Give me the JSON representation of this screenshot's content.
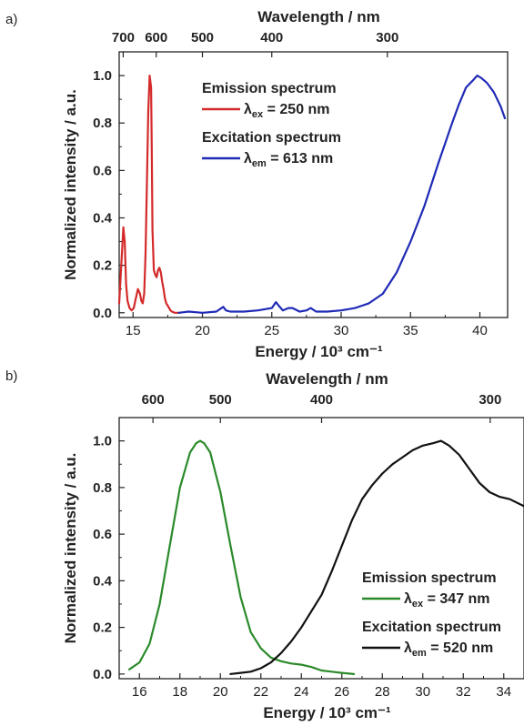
{
  "chart_data": [
    {
      "type": "line",
      "panel_label": "a)",
      "xlabel": "Energy / 10³ cm⁻¹",
      "ylabel": "Normalized intensity / a.u.",
      "x2label": "Wavelength / nm",
      "xlim": [
        14,
        42
      ],
      "ylim": [
        -0.02,
        1.1
      ],
      "xticks": [
        15,
        20,
        25,
        30,
        35,
        40
      ],
      "yticks": [
        0.0,
        0.2,
        0.4,
        0.6,
        0.8,
        1.0
      ],
      "ytick_labels": [
        "0.0",
        "0.2",
        "0.4",
        "0.6",
        "0.8",
        "1.0"
      ],
      "top_ticks": [
        {
          "label": "700",
          "energy": 14.29
        },
        {
          "label": "600",
          "energy": 16.67
        },
        {
          "label": "500",
          "energy": 20.0
        },
        {
          "label": "400",
          "energy": 25.0
        },
        {
          "label": "300",
          "energy": 33.33
        }
      ],
      "legend": [
        {
          "heading": "Emission spectrum",
          "label": "λex = 250 nm",
          "sub": "ex",
          "value": " = 250 nm",
          "color": "#d42a2a"
        },
        {
          "heading": "Excitation spectrum",
          "label": "λem = 613 nm",
          "sub": "em",
          "value": " = 613 nm",
          "color": "#1f2ab5"
        }
      ],
      "series": [
        {
          "color": "#d42a2a",
          "x": [
            14.0,
            14.15,
            14.3,
            14.4,
            14.5,
            14.6,
            14.75,
            14.9,
            15.05,
            15.2,
            15.35,
            15.5,
            15.6,
            15.7,
            15.8,
            15.9,
            16.0,
            16.1,
            16.2,
            16.3,
            16.35,
            16.4,
            16.5,
            16.6,
            16.7,
            16.8,
            16.9,
            17.0,
            17.1,
            17.2,
            17.3,
            17.4,
            17.5,
            17.6,
            17.7,
            17.8,
            18.0,
            18.3
          ],
          "y": [
            0.04,
            0.2,
            0.36,
            0.3,
            0.12,
            0.05,
            0.02,
            0.01,
            0.02,
            0.06,
            0.1,
            0.08,
            0.05,
            0.04,
            0.08,
            0.25,
            0.55,
            0.85,
            1.0,
            0.95,
            0.7,
            0.35,
            0.18,
            0.16,
            0.15,
            0.18,
            0.19,
            0.17,
            0.13,
            0.1,
            0.06,
            0.04,
            0.03,
            0.02,
            0.01,
            0.005,
            0.0,
            0.0
          ]
        },
        {
          "color": "#1f2ab5",
          "x": [
            18.3,
            19.0,
            20.0,
            21.0,
            21.5,
            21.7,
            22.0,
            23.0,
            24.0,
            25.0,
            25.3,
            25.5,
            25.8,
            26.2,
            26.5,
            27.0,
            27.5,
            27.8,
            28.2,
            29.0,
            30.0,
            31.0,
            31.5,
            32.0,
            33.0,
            34.0,
            35.0,
            36.0,
            37.0,
            38.0,
            38.5,
            39.0,
            39.5,
            39.8,
            40.1,
            40.5,
            41.0,
            41.5,
            41.8
          ],
          "y": [
            0.0,
            0.005,
            0.0,
            0.005,
            0.025,
            0.01,
            0.005,
            0.005,
            0.01,
            0.02,
            0.045,
            0.03,
            0.01,
            0.02,
            0.02,
            0.005,
            0.01,
            0.02,
            0.005,
            0.005,
            0.01,
            0.02,
            0.03,
            0.04,
            0.08,
            0.17,
            0.3,
            0.45,
            0.63,
            0.8,
            0.88,
            0.95,
            0.98,
            1.0,
            0.99,
            0.97,
            0.93,
            0.87,
            0.82
          ]
        }
      ]
    },
    {
      "type": "line",
      "panel_label": "b)",
      "xlabel": "Energy / 10³ cm⁻¹",
      "ylabel": "Normalized intensity / a.u.",
      "x2label": "Wavelength / nm",
      "xlim": [
        15,
        35
      ],
      "ylim": [
        -0.02,
        1.1
      ],
      "xticks": [
        16,
        18,
        20,
        22,
        24,
        26,
        28,
        30,
        32,
        34
      ],
      "yticks": [
        0.0,
        0.2,
        0.4,
        0.6,
        0.8,
        1.0
      ],
      "ytick_labels": [
        "0.0",
        "0.2",
        "0.4",
        "0.6",
        "0.8",
        "1.0"
      ],
      "top_ticks": [
        {
          "label": "600",
          "energy": 16.67
        },
        {
          "label": "500",
          "energy": 20.0
        },
        {
          "label": "400",
          "energy": 25.0
        },
        {
          "label": "300",
          "energy": 33.33
        }
      ],
      "legend": [
        {
          "heading": "Emission spectrum",
          "label": "λex = 347 nm",
          "sub": "ex",
          "value": " = 347 nm",
          "color": "#2a8a2a"
        },
        {
          "heading": "Excitation spectrum",
          "label": "λem = 520 nm",
          "sub": "em",
          "value": " = 520 nm",
          "color": "#111111"
        }
      ],
      "series": [
        {
          "color": "#2a8a2a",
          "x": [
            15.5,
            16.0,
            16.5,
            17.0,
            17.5,
            18.0,
            18.5,
            18.8,
            19.0,
            19.2,
            19.5,
            20.0,
            20.5,
            21.0,
            21.5,
            22.0,
            22.5,
            23.0,
            23.5,
            24.0,
            24.5,
            25.0,
            25.5,
            26.0,
            26.6
          ],
          "y": [
            0.02,
            0.05,
            0.13,
            0.3,
            0.55,
            0.8,
            0.95,
            0.99,
            1.0,
            0.99,
            0.95,
            0.78,
            0.55,
            0.33,
            0.18,
            0.11,
            0.07,
            0.055,
            0.045,
            0.04,
            0.03,
            0.015,
            0.01,
            0.005,
            0.0
          ]
        },
        {
          "color": "#111111",
          "x": [
            20.5,
            21.0,
            21.5,
            22.0,
            22.5,
            23.0,
            23.5,
            24.0,
            24.5,
            25.0,
            25.5,
            26.0,
            26.5,
            27.0,
            27.5,
            28.0,
            28.5,
            29.0,
            29.5,
            30.0,
            30.5,
            30.9,
            31.3,
            31.8,
            32.3,
            32.8,
            33.3,
            33.8,
            34.3,
            35.0
          ],
          "y": [
            0.0,
            0.005,
            0.01,
            0.025,
            0.05,
            0.09,
            0.14,
            0.2,
            0.27,
            0.34,
            0.44,
            0.55,
            0.66,
            0.75,
            0.81,
            0.86,
            0.9,
            0.93,
            0.96,
            0.98,
            0.99,
            1.0,
            0.98,
            0.94,
            0.88,
            0.82,
            0.78,
            0.76,
            0.75,
            0.72
          ]
        }
      ]
    }
  ]
}
